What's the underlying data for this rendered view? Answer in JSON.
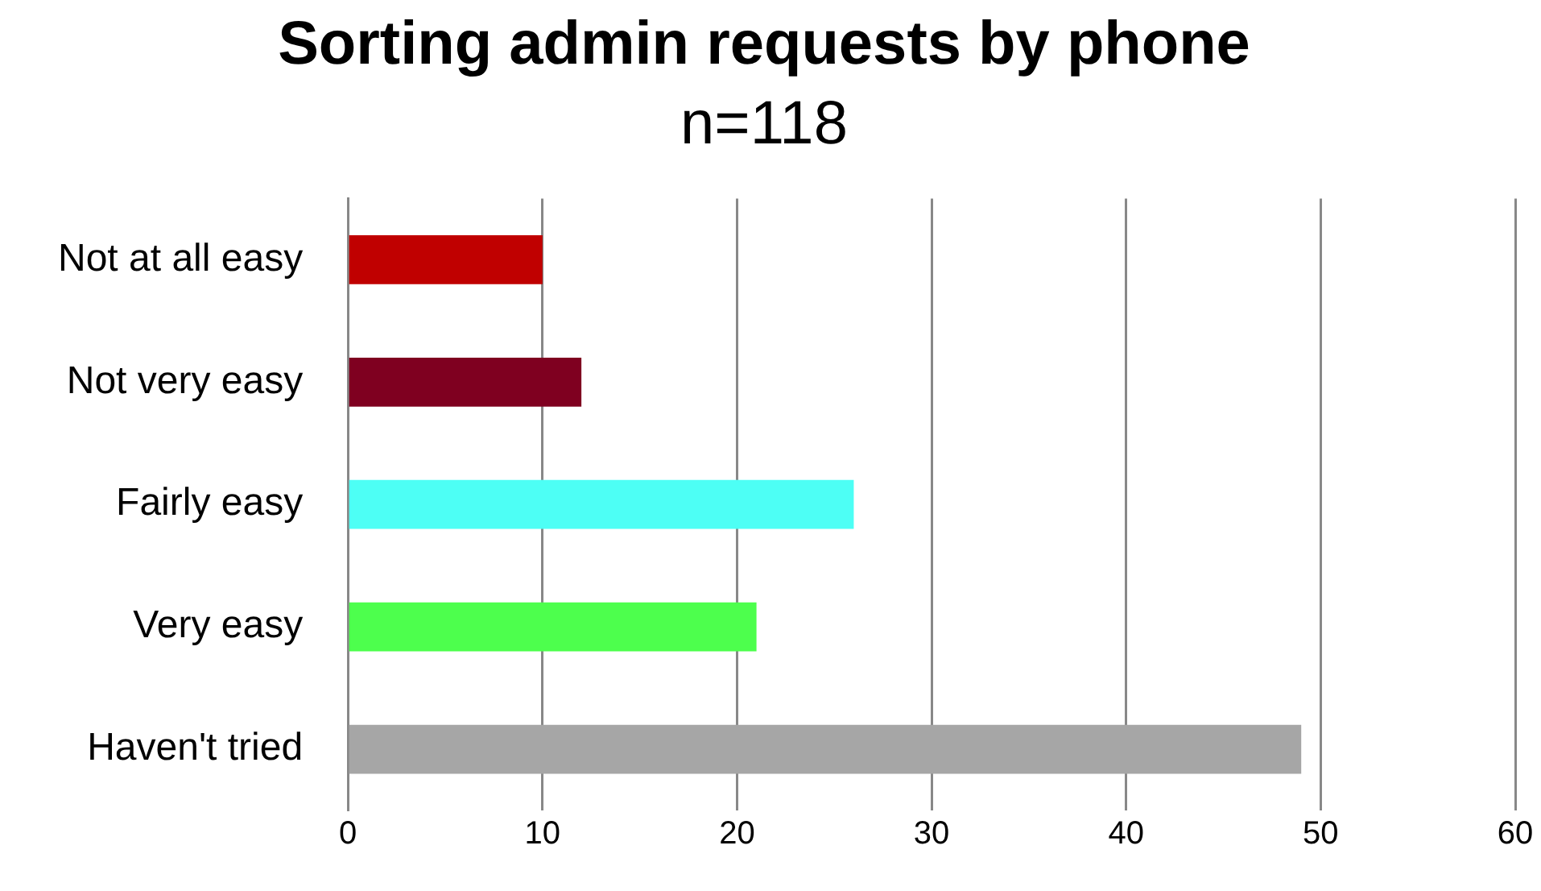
{
  "chart_data": {
    "type": "bar",
    "orientation": "horizontal",
    "title": "Sorting admin requests by phone",
    "subtitle": "n=118",
    "categories": [
      "Not at all easy",
      "Not very easy",
      "Fairly easy",
      "Very easy",
      "Haven't tried"
    ],
    "values": [
      10,
      12,
      26,
      21,
      49
    ],
    "colors": [
      "#c00000",
      "#7f0020",
      "#4dfff5",
      "#4dff4d",
      "#a6a6a6"
    ],
    "xlim": [
      0,
      60
    ],
    "xticks": [
      0,
      10,
      20,
      30,
      40,
      50,
      60
    ],
    "grid": "x",
    "legend": false
  }
}
